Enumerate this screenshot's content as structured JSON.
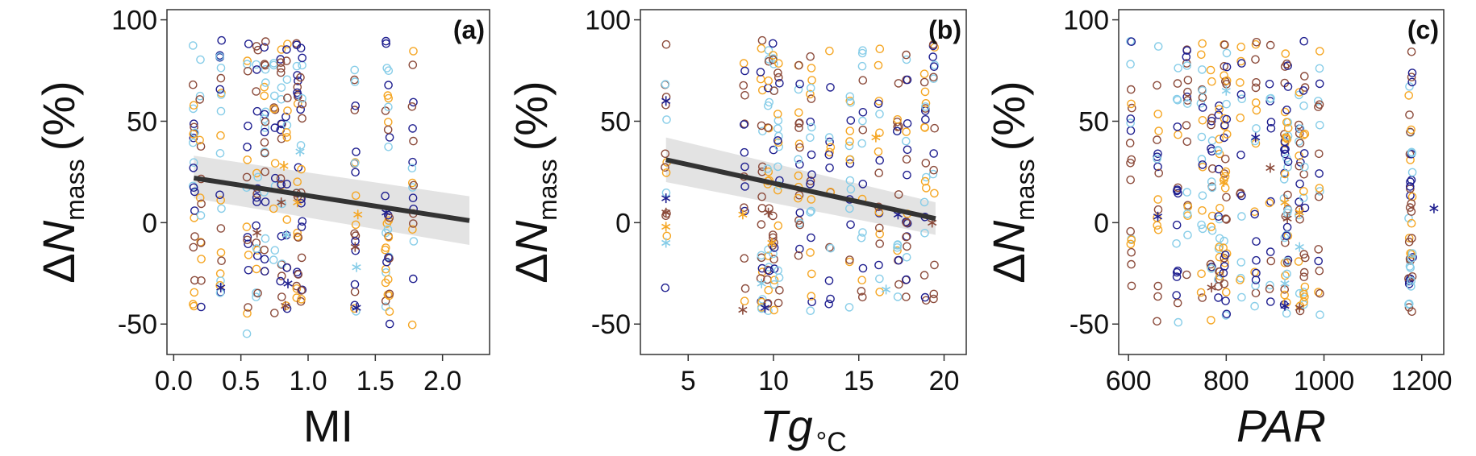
{
  "chart_data": [
    {
      "type": "scatter",
      "panel_label": "(a)",
      "xlabel": "MI",
      "xlabel_italic": false,
      "xlabel_sub": "",
      "ylabel_prefix": "Δ",
      "ylabel_var": "N",
      "ylabel_sub": "mass",
      "ylabel_suffix": "(%)",
      "xlim": [
        -0.05,
        2.35
      ],
      "ylim": [
        -65,
        105
      ],
      "xticks": [
        0.0,
        0.5,
        1.0,
        1.5,
        2.0
      ],
      "xtick_labels": [
        "0.0",
        "0.5",
        "1.0",
        "1.5",
        "2.0"
      ],
      "yticks": [
        -50,
        0,
        50,
        100
      ],
      "ytick_labels": [
        "-50",
        "0",
        "50",
        "100"
      ],
      "grid": false,
      "x_columns": [
        0.15,
        0.2,
        0.35,
        0.55,
        0.62,
        0.68,
        0.75,
        0.8,
        0.84,
        0.92,
        0.95,
        1.35,
        1.58,
        1.6,
        1.78
      ],
      "stars": [
        [
          0.35,
          -32
        ],
        [
          0.62,
          -5
        ],
        [
          0.82,
          28
        ],
        [
          0.84,
          -6
        ],
        [
          0.85,
          -30
        ],
        [
          0.83,
          -41
        ],
        [
          0.92,
          10
        ],
        [
          0.94,
          35
        ],
        [
          1.36,
          -42
        ],
        [
          1.35,
          -12
        ],
        [
          1.37,
          4
        ],
        [
          1.36,
          -22
        ],
        [
          1.58,
          5
        ],
        [
          0.8,
          10
        ]
      ],
      "trend_line": {
        "x": [
          0.15,
          2.2
        ],
        "y": [
          22,
          1
        ]
      },
      "confidence_band": {
        "x": [
          0.15,
          2.2
        ],
        "upper": [
          33,
          13
        ],
        "lower": [
          12,
          -11
        ]
      }
    },
    {
      "type": "scatter",
      "panel_label": "(b)",
      "xlabel": "Tg",
      "xlabel_italic": true,
      "xlabel_sub": "°C",
      "ylabel_prefix": "Δ",
      "ylabel_var": "N",
      "ylabel_sub": "mass",
      "ylabel_suffix": "(%)",
      "xlim": [
        2.2,
        21.3
      ],
      "ylim": [
        -65,
        105
      ],
      "xticks": [
        5,
        10,
        15,
        20
      ],
      "xtick_labels": [
        "5",
        "10",
        "15",
        "20"
      ],
      "yticks": [
        -50,
        0,
        50,
        100
      ],
      "ytick_labels": [
        "-50",
        "0",
        "50",
        "100"
      ],
      "grid": false,
      "x_columns": [
        3.7,
        8.3,
        9.3,
        9.7,
        10.0,
        10.3,
        11.5,
        12.2,
        13.3,
        14.5,
        15.2,
        16.2,
        17.3,
        17.8,
        18.9,
        19.4
      ],
      "stars": [
        [
          3.7,
          60
        ],
        [
          3.7,
          5
        ],
        [
          3.7,
          -2
        ],
        [
          3.7,
          -10
        ],
        [
          3.7,
          12
        ],
        [
          8.2,
          -43
        ],
        [
          8.2,
          4
        ],
        [
          9.3,
          -30
        ],
        [
          9.5,
          -42
        ],
        [
          9.7,
          5
        ],
        [
          16.0,
          42
        ],
        [
          16.6,
          -33
        ],
        [
          17.3,
          4
        ],
        [
          19.3,
          0
        ],
        [
          9.9,
          -10
        ]
      ],
      "trend_line": {
        "x": [
          3.7,
          19.5
        ],
        "y": [
          31,
          2
        ]
      },
      "confidence_band": {
        "x": [
          3.7,
          19.5
        ],
        "upper": [
          42,
          10
        ],
        "lower": [
          20,
          -6
        ]
      }
    },
    {
      "type": "scatter",
      "panel_label": "(c)",
      "xlabel": "PAR",
      "xlabel_italic": true,
      "xlabel_sub": "",
      "ylabel_prefix": "Δ",
      "ylabel_var": "N",
      "ylabel_sub": "mass",
      "ylabel_suffix": "(%)",
      "xlim": [
        580,
        1245
      ],
      "ylim": [
        -65,
        105
      ],
      "xticks": [
        600,
        800,
        1000,
        1200
      ],
      "xtick_labels": [
        "600",
        "800",
        "1000",
        "1200"
      ],
      "yticks": [
        -50,
        0,
        50,
        100
      ],
      "ytick_labels": [
        "-50",
        "0",
        "50",
        "100"
      ],
      "grid": false,
      "x_columns": [
        605,
        660,
        700,
        720,
        750,
        770,
        785,
        795,
        800,
        830,
        860,
        890,
        920,
        925,
        950,
        960,
        990,
        1175,
        1180
      ],
      "stars": [
        [
          660,
          3
        ],
        [
          770,
          -32
        ],
        [
          795,
          20
        ],
        [
          800,
          65
        ],
        [
          860,
          42
        ],
        [
          890,
          27
        ],
        [
          920,
          10
        ],
        [
          920,
          -30
        ],
        [
          920,
          -41
        ],
        [
          950,
          -42
        ],
        [
          950,
          5
        ],
        [
          950,
          -12
        ],
        [
          1225,
          7
        ],
        [
          925,
          2
        ]
      ],
      "trend_line": null,
      "confidence_band": null
    }
  ],
  "colors": {
    "series": [
      "#1f1f8f",
      "#8b4a3a",
      "#f5a623",
      "#87cde8"
    ],
    "trend_line": "#333333",
    "band": "#d9d9d9"
  }
}
